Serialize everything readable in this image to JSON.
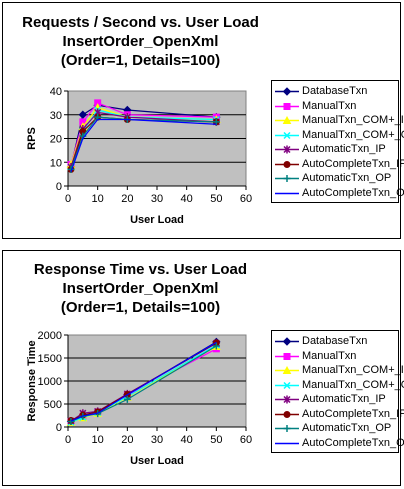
{
  "chart_data": [
    {
      "type": "line",
      "title": "Requests / Second  vs.  User Load",
      "subtitle_lines": [
        "InsertOrder_OpenXml",
        "(Order=1, Details=100)"
      ],
      "xlabel": "User Load",
      "ylabel": "RPS",
      "xlim": [
        0,
        60
      ],
      "ylim": [
        0,
        40
      ],
      "x_ticks": [
        0,
        10,
        20,
        30,
        40,
        50,
        60
      ],
      "y_ticks": [
        0,
        10,
        20,
        30,
        40
      ],
      "grid": "horizontal",
      "legend": "right",
      "x": [
        1,
        5,
        10,
        20,
        50
      ],
      "series": [
        {
          "name": "DatabaseTxn",
          "values": [
            8,
            30,
            34,
            32,
            29
          ]
        },
        {
          "name": "ManualTxn",
          "values": [
            9,
            27,
            35,
            30,
            29
          ]
        },
        {
          "name": "ManualTxn_COM+_IP",
          "values": [
            9,
            25,
            33,
            29,
            28
          ]
        },
        {
          "name": "ManualTxn_COM+_OP",
          "values": [
            8,
            23,
            32,
            29,
            28
          ]
        },
        {
          "name": "AutomaticTxn_IP",
          "values": [
            8,
            24,
            31,
            29,
            27
          ]
        },
        {
          "name": "AutoCompleteTxn_IP",
          "values": [
            7,
            23,
            29,
            28,
            27
          ]
        },
        {
          "name": "AutomaticTxn_OP",
          "values": [
            7,
            21,
            29,
            28,
            27
          ]
        },
        {
          "name": "AutoCompleteTxn_OP",
          "values": [
            6,
            20,
            28,
            28,
            26
          ]
        }
      ]
    },
    {
      "type": "line",
      "title": "Response Time  vs.  User Load",
      "subtitle_lines": [
        "InsertOrder_OpenXml",
        "(Order=1, Details=100)"
      ],
      "xlabel": "User Load",
      "ylabel": "Response Time",
      "xlim": [
        0,
        60
      ],
      "ylim": [
        0,
        2000
      ],
      "x_ticks": [
        0,
        10,
        20,
        30,
        40,
        50,
        60
      ],
      "y_ticks": [
        0,
        500,
        1000,
        1500,
        2000
      ],
      "grid": "horizontal",
      "legend": "right",
      "x": [
        1,
        5,
        10,
        20,
        50
      ],
      "series": [
        {
          "name": "DatabaseTxn",
          "values": [
            120,
            250,
            330,
            700,
            1850
          ]
        },
        {
          "name": "ManualTxn",
          "values": [
            110,
            220,
            320,
            680,
            1700
          ]
        },
        {
          "name": "ManualTxn_COM+_IP",
          "values": [
            100,
            200,
            300,
            650,
            1750
          ]
        },
        {
          "name": "ManualTxn_COM+_OP",
          "values": [
            100,
            210,
            310,
            660,
            1780
          ]
        },
        {
          "name": "AutomaticTxn_IP",
          "values": [
            130,
            300,
            340,
            720,
            1820
          ]
        },
        {
          "name": "AutoCompleteTxn_IP",
          "values": [
            140,
            260,
            330,
            710,
            1830
          ]
        },
        {
          "name": "AutomaticTxn_OP",
          "values": [
            120,
            230,
            290,
            600,
            1760
          ]
        },
        {
          "name": "AutoCompleteTxn_OP",
          "values": [
            130,
            240,
            300,
            700,
            1840
          ]
        }
      ]
    }
  ],
  "series_style": [
    {
      "color": "#000080",
      "marker": "diamond"
    },
    {
      "color": "#FF00FF",
      "marker": "square"
    },
    {
      "color": "#FFFF00",
      "marker": "triangle"
    },
    {
      "color": "#00FFFF",
      "marker": "x"
    },
    {
      "color": "#800080",
      "marker": "star"
    },
    {
      "color": "#800000",
      "marker": "circle"
    },
    {
      "color": "#008080",
      "marker": "plus"
    },
    {
      "color": "#0000FF",
      "marker": "none"
    }
  ],
  "plot_background": "#C0C0C0"
}
